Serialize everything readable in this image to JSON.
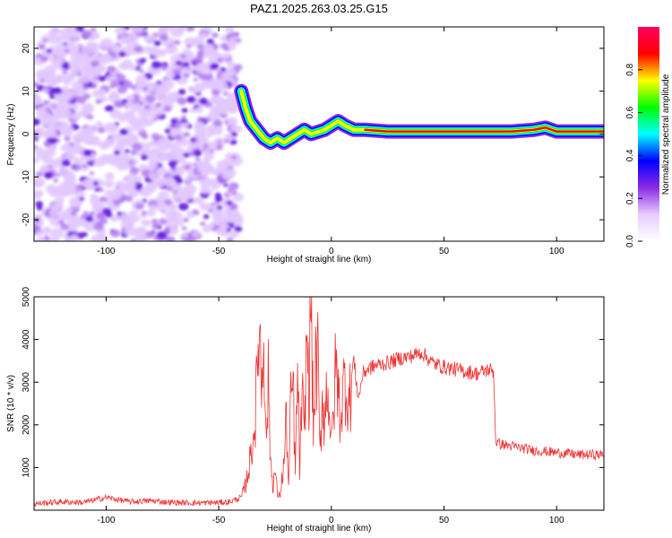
{
  "title": "PAZ1.2025.263.03.25.G15",
  "chart_data": [
    {
      "type": "heatmap",
      "title": "PAZ1.2025.263.03.25.G15",
      "xlabel": "Height of straight line (km)",
      "ylabel": "Frequency (Hz)",
      "xlim": [
        -132,
        121
      ],
      "ylim": [
        -25,
        25
      ],
      "xticks": [
        -100,
        -50,
        0,
        50,
        100
      ],
      "yticks": [
        -20,
        -10,
        0,
        10,
        20
      ],
      "colorbar": {
        "label": "Normalized spectral amplitude",
        "range": [
          0,
          1
        ],
        "ticks": [
          0.0,
          0.2,
          0.4,
          0.6,
          0.8
        ],
        "colors": [
          "#ffffff",
          "#e6ccff",
          "#8a2be2",
          "#0000ff",
          "#00ffff",
          "#00ff00",
          "#ffff00",
          "#ff0000",
          "#ff0066"
        ]
      },
      "noise_region_x": [
        -132,
        -41
      ],
      "signal_trace": [
        {
          "x": -40,
          "f": 10.0
        },
        {
          "x": -38,
          "f": 6.0
        },
        {
          "x": -36,
          "f": 3.0
        },
        {
          "x": -33,
          "f": 1.0
        },
        {
          "x": -30,
          "f": -1.0
        },
        {
          "x": -27,
          "f": -2.0
        },
        {
          "x": -24,
          "f": -1.0
        },
        {
          "x": -21,
          "f": -2.0
        },
        {
          "x": -18,
          "f": -1.0
        },
        {
          "x": -15,
          "f": 0.0
        },
        {
          "x": -12,
          "f": 1.0
        },
        {
          "x": -9,
          "f": 0.0
        },
        {
          "x": -6,
          "f": 0.5
        },
        {
          "x": -3,
          "f": 1.0
        },
        {
          "x": 0,
          "f": 2.0
        },
        {
          "x": 3,
          "f": 3.0
        },
        {
          "x": 6,
          "f": 2.0
        },
        {
          "x": 10,
          "f": 1.0
        },
        {
          "x": 15,
          "f": 1.0
        },
        {
          "x": 25,
          "f": 0.6
        },
        {
          "x": 40,
          "f": 0.6
        },
        {
          "x": 60,
          "f": 0.6
        },
        {
          "x": 80,
          "f": 0.6
        },
        {
          "x": 90,
          "f": 1.0
        },
        {
          "x": 95,
          "f": 1.5
        },
        {
          "x": 100,
          "f": 0.6
        },
        {
          "x": 121,
          "f": 0.6
        }
      ]
    },
    {
      "type": "line",
      "xlabel": "Height of straight line (km)",
      "ylabel": "SNR (10 * v/v)",
      "xlim": [
        -132,
        121
      ],
      "ylim": [
        0,
        5000
      ],
      "xticks": [
        -100,
        -50,
        0,
        50,
        100
      ],
      "yticks": [
        1000,
        2000,
        3000,
        4000,
        5000
      ],
      "color": "#ee3333",
      "x": [
        -132,
        -120,
        -110,
        -100,
        -90,
        -80,
        -70,
        -60,
        -50,
        -45,
        -40,
        -38,
        -36,
        -34,
        -33,
        -32,
        -31,
        -30,
        -29,
        -28,
        -27,
        -26,
        -25,
        -24,
        -23,
        -22,
        -21,
        -20,
        -19,
        -18,
        -17,
        -16,
        -15,
        -14,
        -13,
        -12,
        -11,
        -10,
        -9,
        -8,
        -7,
        -6,
        -5,
        -4,
        -3,
        -2,
        -1,
        0,
        2,
        4,
        6,
        8,
        10,
        12,
        14,
        16,
        20,
        25,
        30,
        35,
        40,
        45,
        50,
        55,
        60,
        65,
        70,
        72,
        73,
        75,
        80,
        90,
        100,
        110,
        121
      ],
      "values": [
        150,
        200,
        180,
        300,
        200,
        220,
        180,
        170,
        180,
        200,
        300,
        600,
        1200,
        2000,
        3000,
        4700,
        2800,
        4500,
        1500,
        3000,
        1200,
        600,
        900,
        400,
        300,
        700,
        1100,
        2200,
        500,
        2500,
        3000,
        800,
        3200,
        1000,
        2800,
        1500,
        4200,
        2700,
        5000,
        1800,
        3300,
        3500,
        1200,
        2800,
        2000,
        3000,
        2600,
        1400,
        3400,
        2200,
        3100,
        2500,
        3500,
        2600,
        3200,
        3300,
        3400,
        3450,
        3550,
        3600,
        3700,
        3450,
        3350,
        3300,
        3250,
        3200,
        3300,
        3250,
        1600,
        1550,
        1500,
        1400,
        1350,
        1300,
        1300
      ]
    }
  ]
}
